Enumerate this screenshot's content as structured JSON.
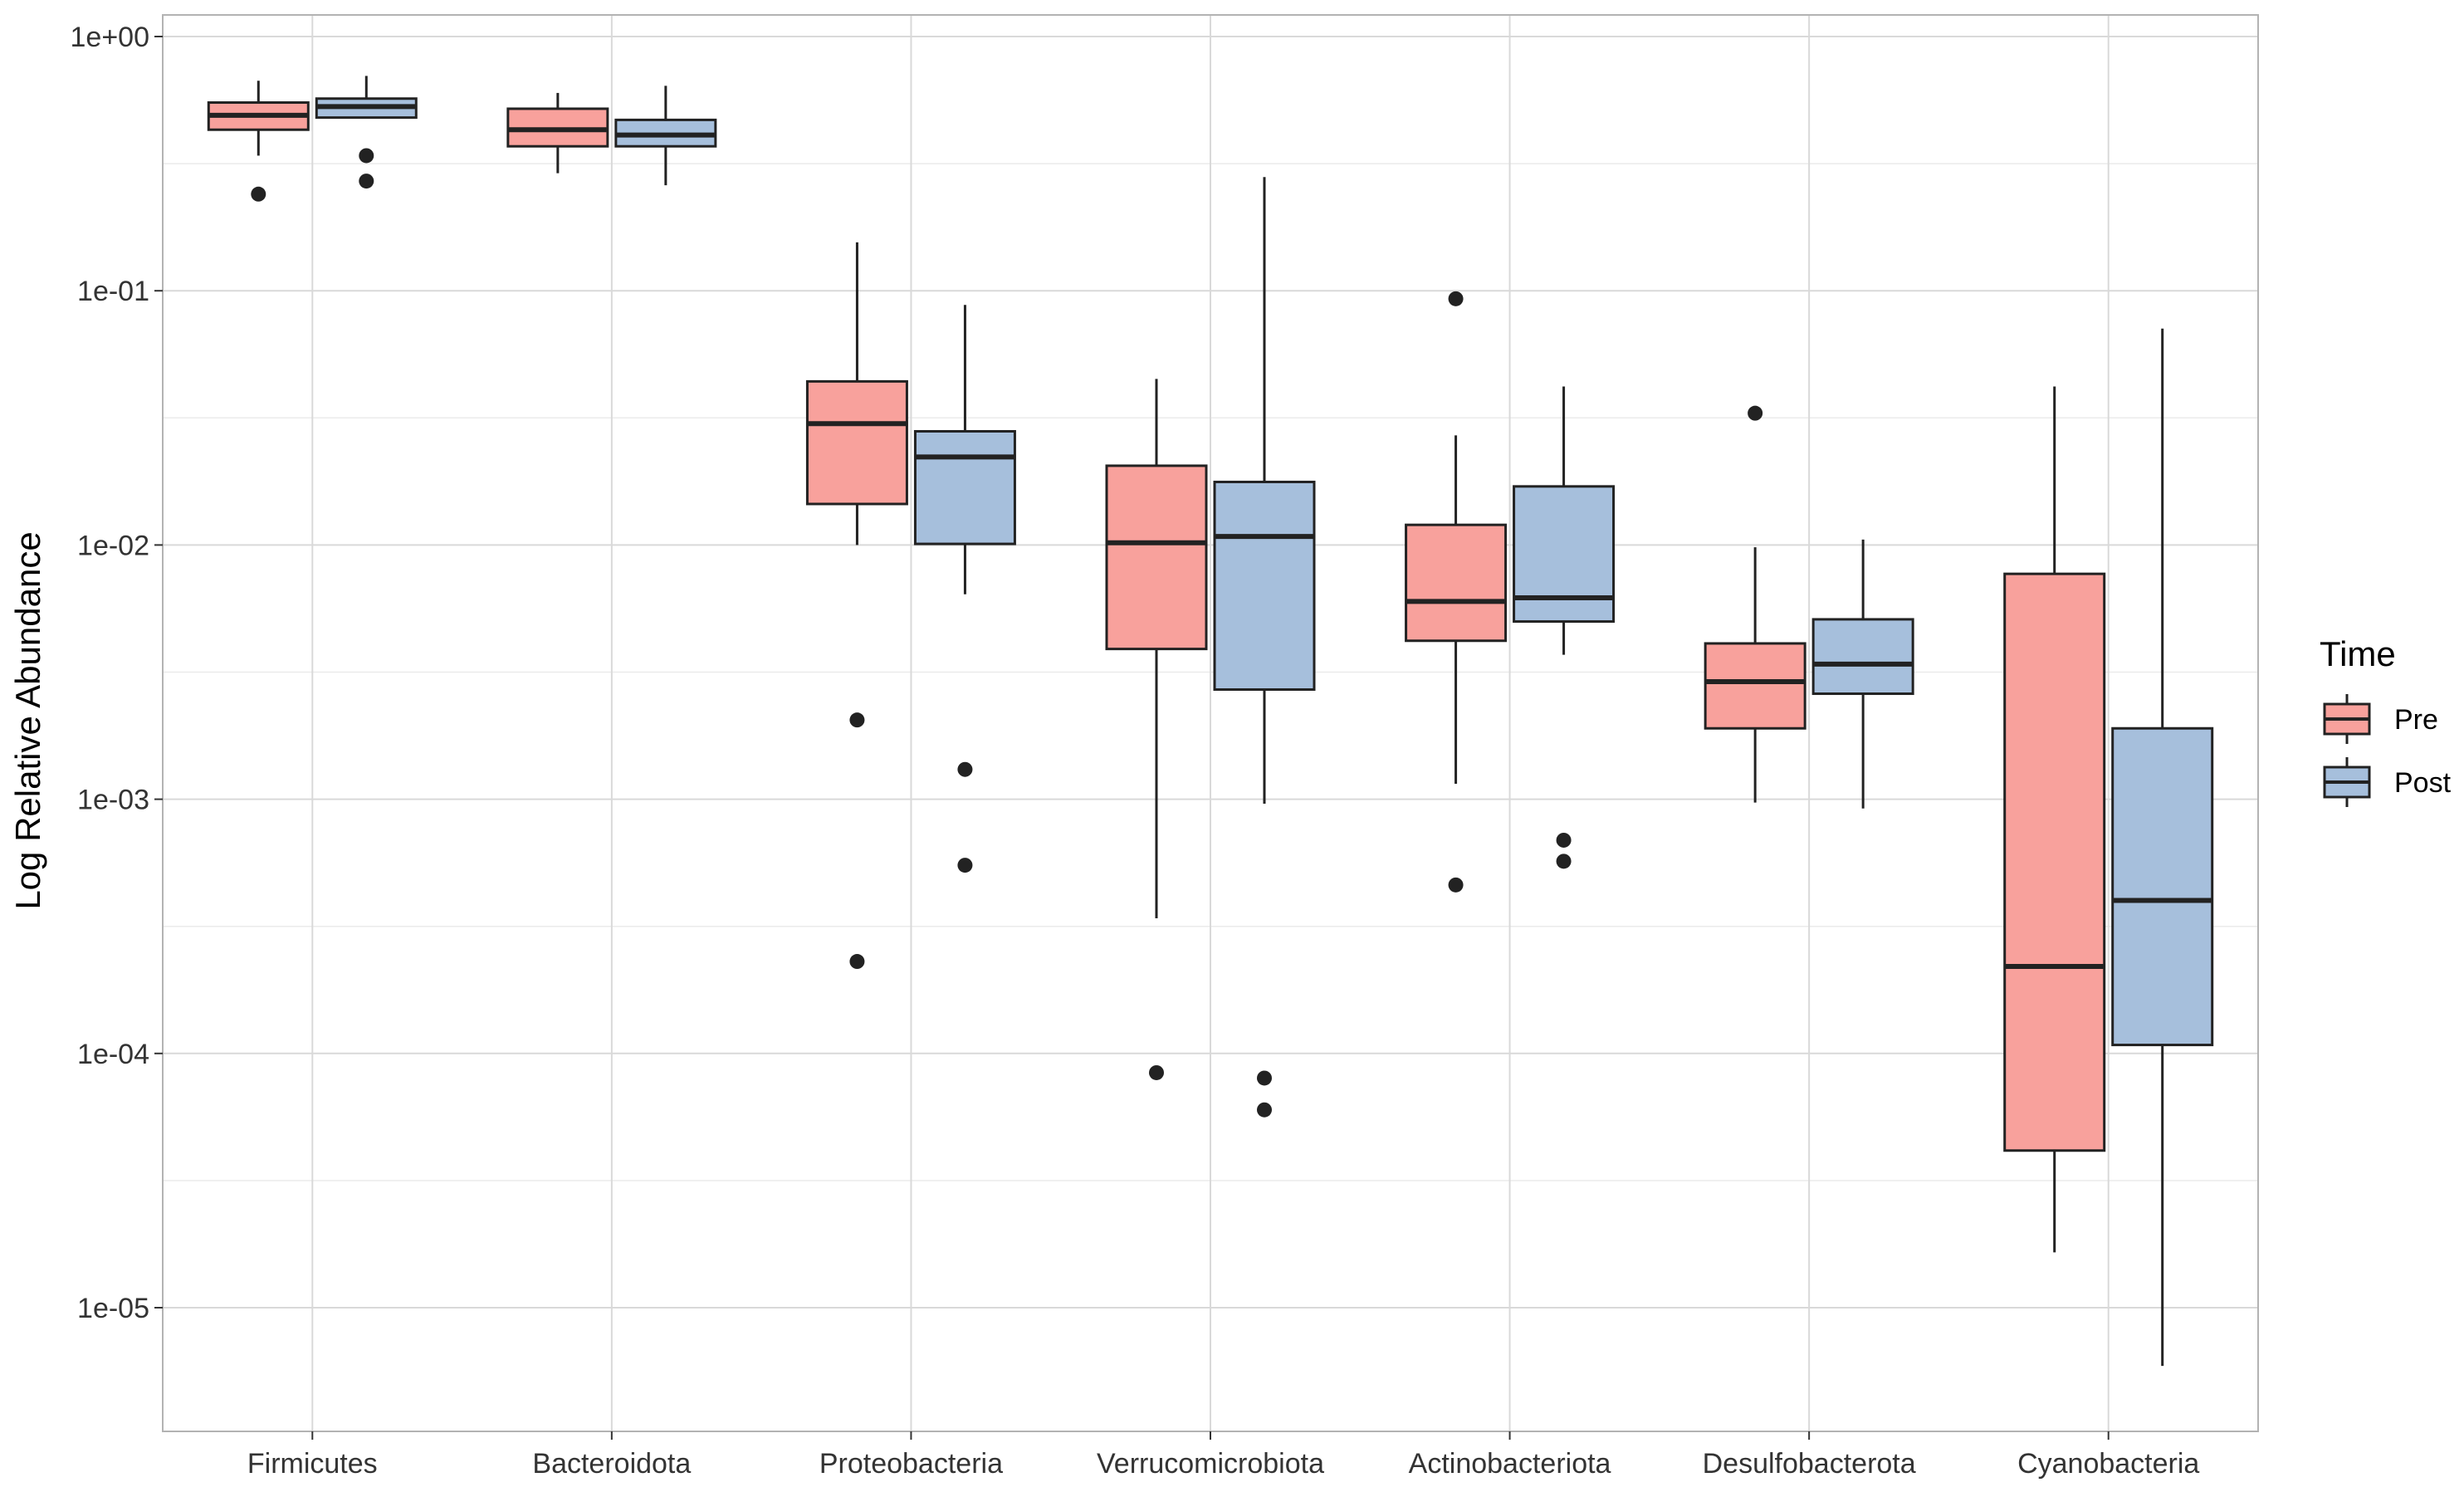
{
  "chart_data": {
    "type": "boxplot",
    "title": "",
    "xlabel": "",
    "ylabel": "Log Relative Abundance",
    "yscale": "log10",
    "ylim": [
      3.6e-06,
      1.2
    ],
    "yticks": [
      1,
      0.1,
      0.01,
      0.001,
      0.0001,
      1e-05
    ],
    "ytick_labels": [
      "1e+00",
      "1e-01",
      "1e-02",
      "1e-03",
      "1e-04",
      "1e-05"
    ],
    "grid": true,
    "categories": [
      "Firmicutes",
      "Bacteroidota",
      "Proteobacteria",
      "Verrucomicrobiota",
      "Actinobacteriota",
      "Desulfobacterota",
      "Cyanobacteria"
    ],
    "legend": {
      "title": "Time",
      "position": "right",
      "entries": [
        {
          "name": "Pre",
          "color": "#f8a19c"
        },
        {
          "name": "Post",
          "color": "#a6bfdc"
        }
      ]
    },
    "series": [
      {
        "name": "Pre",
        "color": "#f8a19c",
        "boxes": [
          {
            "category": "Firmicutes",
            "whisker_low": 0.34,
            "q1": 0.43,
            "median": 0.49,
            "q3": 0.55,
            "whisker_high": 0.67,
            "outliers": [
              0.24
            ]
          },
          {
            "category": "Bacteroidota",
            "whisker_low": 0.29,
            "q1": 0.37,
            "median": 0.43,
            "q3": 0.52,
            "whisker_high": 0.6,
            "outliers": []
          },
          {
            "category": "Proteobacteria",
            "whisker_low": 0.01,
            "q1": 0.0145,
            "median": 0.03,
            "q3": 0.044,
            "whisker_high": 0.155,
            "outliers": [
              0.00205,
              0.00023
            ]
          },
          {
            "category": "Verrucomicrobiota",
            "whisker_low": 0.00034,
            "q1": 0.0039,
            "median": 0.0102,
            "q3": 0.0205,
            "whisker_high": 0.045,
            "outliers": [
              8.4e-05
            ]
          },
          {
            "category": "Actinobacteriota",
            "whisker_low": 0.00115,
            "q1": 0.0042,
            "median": 0.006,
            "q3": 0.012,
            "whisker_high": 0.027,
            "outliers": [
              0.093,
              0.00046
            ]
          },
          {
            "category": "Desulfobacterota",
            "whisker_low": 0.00097,
            "q1": 0.0019,
            "median": 0.0029,
            "q3": 0.0041,
            "whisker_high": 0.0098,
            "outliers": [
              0.033
            ]
          },
          {
            "category": "Cyanobacteria",
            "whisker_low": 1.65e-05,
            "q1": 4.15e-05,
            "median": 0.00022,
            "q3": 0.0077,
            "whisker_high": 0.042,
            "outliers": []
          }
        ]
      },
      {
        "name": "Post",
        "color": "#a6bfdc",
        "boxes": [
          {
            "category": "Firmicutes",
            "whisker_low": 0.48,
            "q1": 0.48,
            "median": 0.53,
            "q3": 0.57,
            "whisker_high": 0.7,
            "outliers": [
              0.34,
              0.27
            ]
          },
          {
            "category": "Bacteroidota",
            "whisker_low": 0.26,
            "q1": 0.37,
            "median": 0.41,
            "q3": 0.47,
            "whisker_high": 0.64,
            "outliers": []
          },
          {
            "category": "Proteobacteria",
            "whisker_low": 0.0064,
            "q1": 0.0101,
            "median": 0.0222,
            "q3": 0.028,
            "whisker_high": 0.088,
            "outliers": [
              0.00131,
              0.00055
            ]
          },
          {
            "category": "Verrucomicrobiota",
            "whisker_low": 0.00096,
            "q1": 0.0027,
            "median": 0.0108,
            "q3": 0.0177,
            "whisker_high": 0.28,
            "outliers": [
              8e-05,
              6e-05
            ]
          },
          {
            "category": "Actinobacteriota",
            "whisker_low": 0.0037,
            "q1": 0.005,
            "median": 0.0062,
            "q3": 0.017,
            "whisker_high": 0.042,
            "outliers": [
              0.00069,
              0.00057
            ]
          },
          {
            "category": "Desulfobacterota",
            "whisker_low": 0.00092,
            "q1": 0.0026,
            "median": 0.0034,
            "q3": 0.0051,
            "whisker_high": 0.0105,
            "outliers": []
          },
          {
            "category": "Cyanobacteria",
            "whisker_low": 5.9e-06,
            "q1": 0.000108,
            "median": 0.0004,
            "q3": 0.0019,
            "whisker_high": 0.071,
            "outliers": []
          }
        ]
      }
    ]
  }
}
